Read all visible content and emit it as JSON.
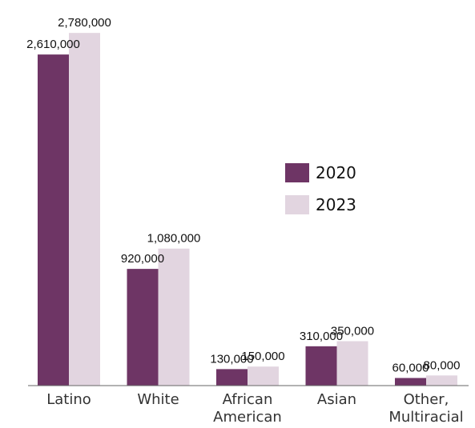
{
  "chart_data": {
    "type": "bar",
    "title": "",
    "xlabel": "",
    "ylabel": "",
    "categories": [
      [
        "Latino"
      ],
      [
        "White"
      ],
      [
        "African",
        "American"
      ],
      [
        "Asian"
      ],
      [
        "Other,",
        "Multiracial"
      ]
    ],
    "series": [
      {
        "name": "2020",
        "color": "#6e3565",
        "values": [
          2610000,
          920000,
          130000,
          310000,
          60000
        ],
        "labels": [
          "2,610,000",
          "920,000",
          "130,000",
          "310,000",
          "60,000"
        ]
      },
      {
        "name": "2023",
        "color": "#e2d5e0",
        "values": [
          2780000,
          1080000,
          150000,
          350000,
          80000
        ],
        "labels": [
          "2,780,000",
          "1,080,000",
          "150,000",
          "350,000",
          "80,000"
        ]
      }
    ],
    "ylim": [
      0,
      2800000
    ],
    "grid": false,
    "legend_position": "center-right",
    "axis_color": "#666666"
  }
}
